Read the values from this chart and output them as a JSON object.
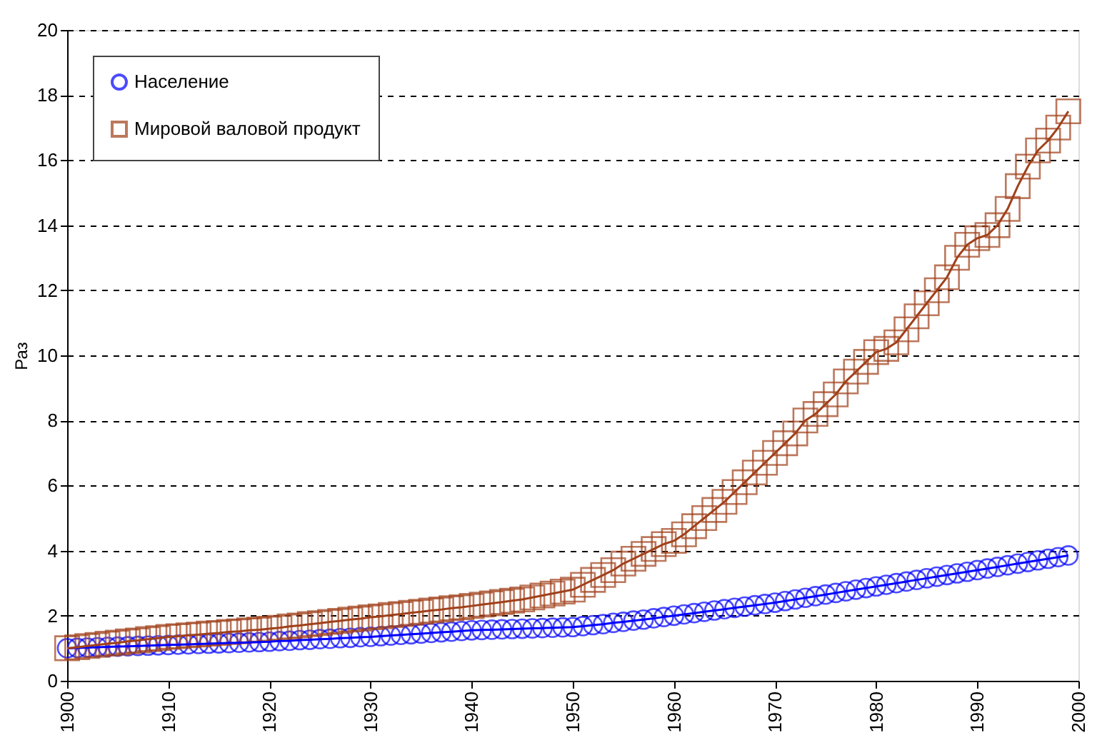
{
  "chart_data": {
    "type": "line",
    "ylabel": "Раз",
    "x": [
      1900,
      1901,
      1902,
      1903,
      1904,
      1905,
      1906,
      1907,
      1908,
      1909,
      1910,
      1911,
      1912,
      1913,
      1914,
      1915,
      1916,
      1917,
      1918,
      1919,
      1920,
      1921,
      1922,
      1923,
      1924,
      1925,
      1926,
      1927,
      1928,
      1929,
      1930,
      1931,
      1932,
      1933,
      1934,
      1935,
      1936,
      1937,
      1938,
      1939,
      1940,
      1941,
      1942,
      1943,
      1944,
      1945,
      1946,
      1947,
      1948,
      1949,
      1950,
      1951,
      1952,
      1953,
      1954,
      1955,
      1956,
      1957,
      1958,
      1959,
      1960,
      1961,
      1962,
      1963,
      1964,
      1965,
      1966,
      1967,
      1968,
      1969,
      1970,
      1971,
      1972,
      1973,
      1974,
      1975,
      1976,
      1977,
      1978,
      1979,
      1980,
      1981,
      1982,
      1983,
      1984,
      1985,
      1986,
      1987,
      1988,
      1989,
      1990,
      1991,
      1992,
      1993,
      1994,
      1995,
      1996,
      1997,
      1998,
      1999
    ],
    "series": [
      {
        "name": "Население",
        "color": "#0000ff",
        "marker": "circle",
        "values": [
          1.0,
          1.01,
          1.02,
          1.03,
          1.04,
          1.05,
          1.06,
          1.07,
          1.08,
          1.09,
          1.1,
          1.11,
          1.12,
          1.13,
          1.14,
          1.15,
          1.16,
          1.17,
          1.18,
          1.19,
          1.2,
          1.22,
          1.23,
          1.25,
          1.26,
          1.28,
          1.29,
          1.31,
          1.32,
          1.34,
          1.35,
          1.37,
          1.39,
          1.41,
          1.43,
          1.45,
          1.47,
          1.49,
          1.51,
          1.53,
          1.55,
          1.56,
          1.57,
          1.58,
          1.59,
          1.6,
          1.61,
          1.62,
          1.63,
          1.64,
          1.65,
          1.68,
          1.71,
          1.74,
          1.78,
          1.81,
          1.85,
          1.88,
          1.92,
          1.96,
          2.0,
          2.04,
          2.08,
          2.12,
          2.16,
          2.2,
          2.24,
          2.28,
          2.32,
          2.36,
          2.4,
          2.45,
          2.5,
          2.55,
          2.6,
          2.65,
          2.7,
          2.75,
          2.8,
          2.85,
          2.9,
          2.95,
          3.0,
          3.05,
          3.1,
          3.15,
          3.2,
          3.25,
          3.3,
          3.35,
          3.4,
          3.45,
          3.5,
          3.55,
          3.6,
          3.65,
          3.7,
          3.75,
          3.8,
          3.85
        ]
      },
      {
        "name": "Мировой валовой продукт",
        "color": "#a0401a",
        "marker": "square",
        "values": [
          1.0,
          1.03,
          1.07,
          1.1,
          1.14,
          1.17,
          1.21,
          1.24,
          1.28,
          1.31,
          1.35,
          1.37,
          1.4,
          1.42,
          1.45,
          1.47,
          1.5,
          1.52,
          1.55,
          1.57,
          1.6,
          1.63,
          1.67,
          1.7,
          1.74,
          1.77,
          1.81,
          1.84,
          1.88,
          1.91,
          1.95,
          1.98,
          2.02,
          2.05,
          2.09,
          2.12,
          2.16,
          2.19,
          2.23,
          2.26,
          2.3,
          2.34,
          2.38,
          2.42,
          2.46,
          2.5,
          2.56,
          2.62,
          2.68,
          2.74,
          2.8,
          2.95,
          3.1,
          3.25,
          3.4,
          3.6,
          3.75,
          3.9,
          4.05,
          4.2,
          4.3,
          4.5,
          4.75,
          5.0,
          5.25,
          5.5,
          5.8,
          6.1,
          6.4,
          6.7,
          7.0,
          7.3,
          7.6,
          8.0,
          8.2,
          8.5,
          8.8,
          9.2,
          9.5,
          9.8,
          10.1,
          10.2,
          10.4,
          10.8,
          11.2,
          11.6,
          12.0,
          12.4,
          13.0,
          13.4,
          13.6,
          13.7,
          14.0,
          14.5,
          15.2,
          15.8,
          16.3,
          16.6,
          17.0,
          17.5
        ]
      }
    ],
    "xlim": [
      1900,
      2000
    ],
    "xticks": [
      1900,
      1910,
      1920,
      1930,
      1940,
      1950,
      1960,
      1970,
      1980,
      1990,
      2000
    ],
    "ylim": [
      0,
      20
    ],
    "yticks": [
      0,
      2,
      4,
      6,
      8,
      10,
      12,
      14,
      16,
      18,
      20
    ],
    "grid": "y",
    "line_style": "solid",
    "legend": "top left"
  }
}
